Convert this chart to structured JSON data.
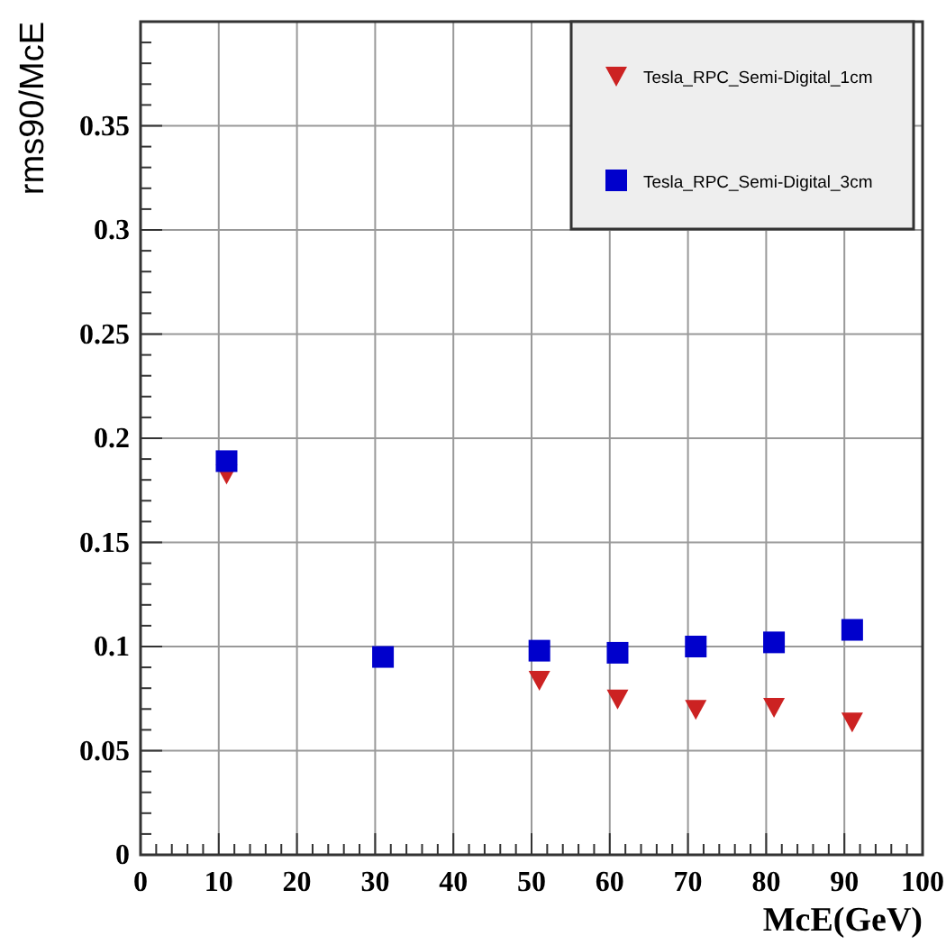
{
  "chart_data": {
    "type": "scatter",
    "xlabel": "McE(GeV)",
    "ylabel": "rms90/McE",
    "xlim": [
      0,
      100
    ],
    "xticks": [
      0,
      10,
      20,
      30,
      40,
      50,
      60,
      70,
      80,
      90,
      100
    ],
    "ylim": [
      0,
      0.4
    ],
    "yticks": [
      0,
      0.05,
      0.1,
      0.15,
      0.2,
      0.25,
      0.3,
      0.35
    ],
    "grid": true,
    "legend": "top right",
    "series": [
      {
        "name": "Tesla_RPC_Semi-Digital_1cm",
        "color": "#cc2222",
        "marker": "triangle",
        "x": [
          11,
          51,
          61,
          71,
          81,
          91
        ],
        "values": [
          0.183,
          0.084,
          0.075,
          0.07,
          0.071,
          0.064
        ]
      },
      {
        "name": "Tesla_RPC_Semi-Digital_3cm",
        "color": "#0000cc",
        "marker": "square",
        "x": [
          11,
          31,
          51,
          61,
          71,
          81,
          91
        ],
        "values": [
          0.189,
          0.095,
          0.098,
          0.097,
          0.1,
          0.102,
          0.108
        ]
      }
    ]
  }
}
